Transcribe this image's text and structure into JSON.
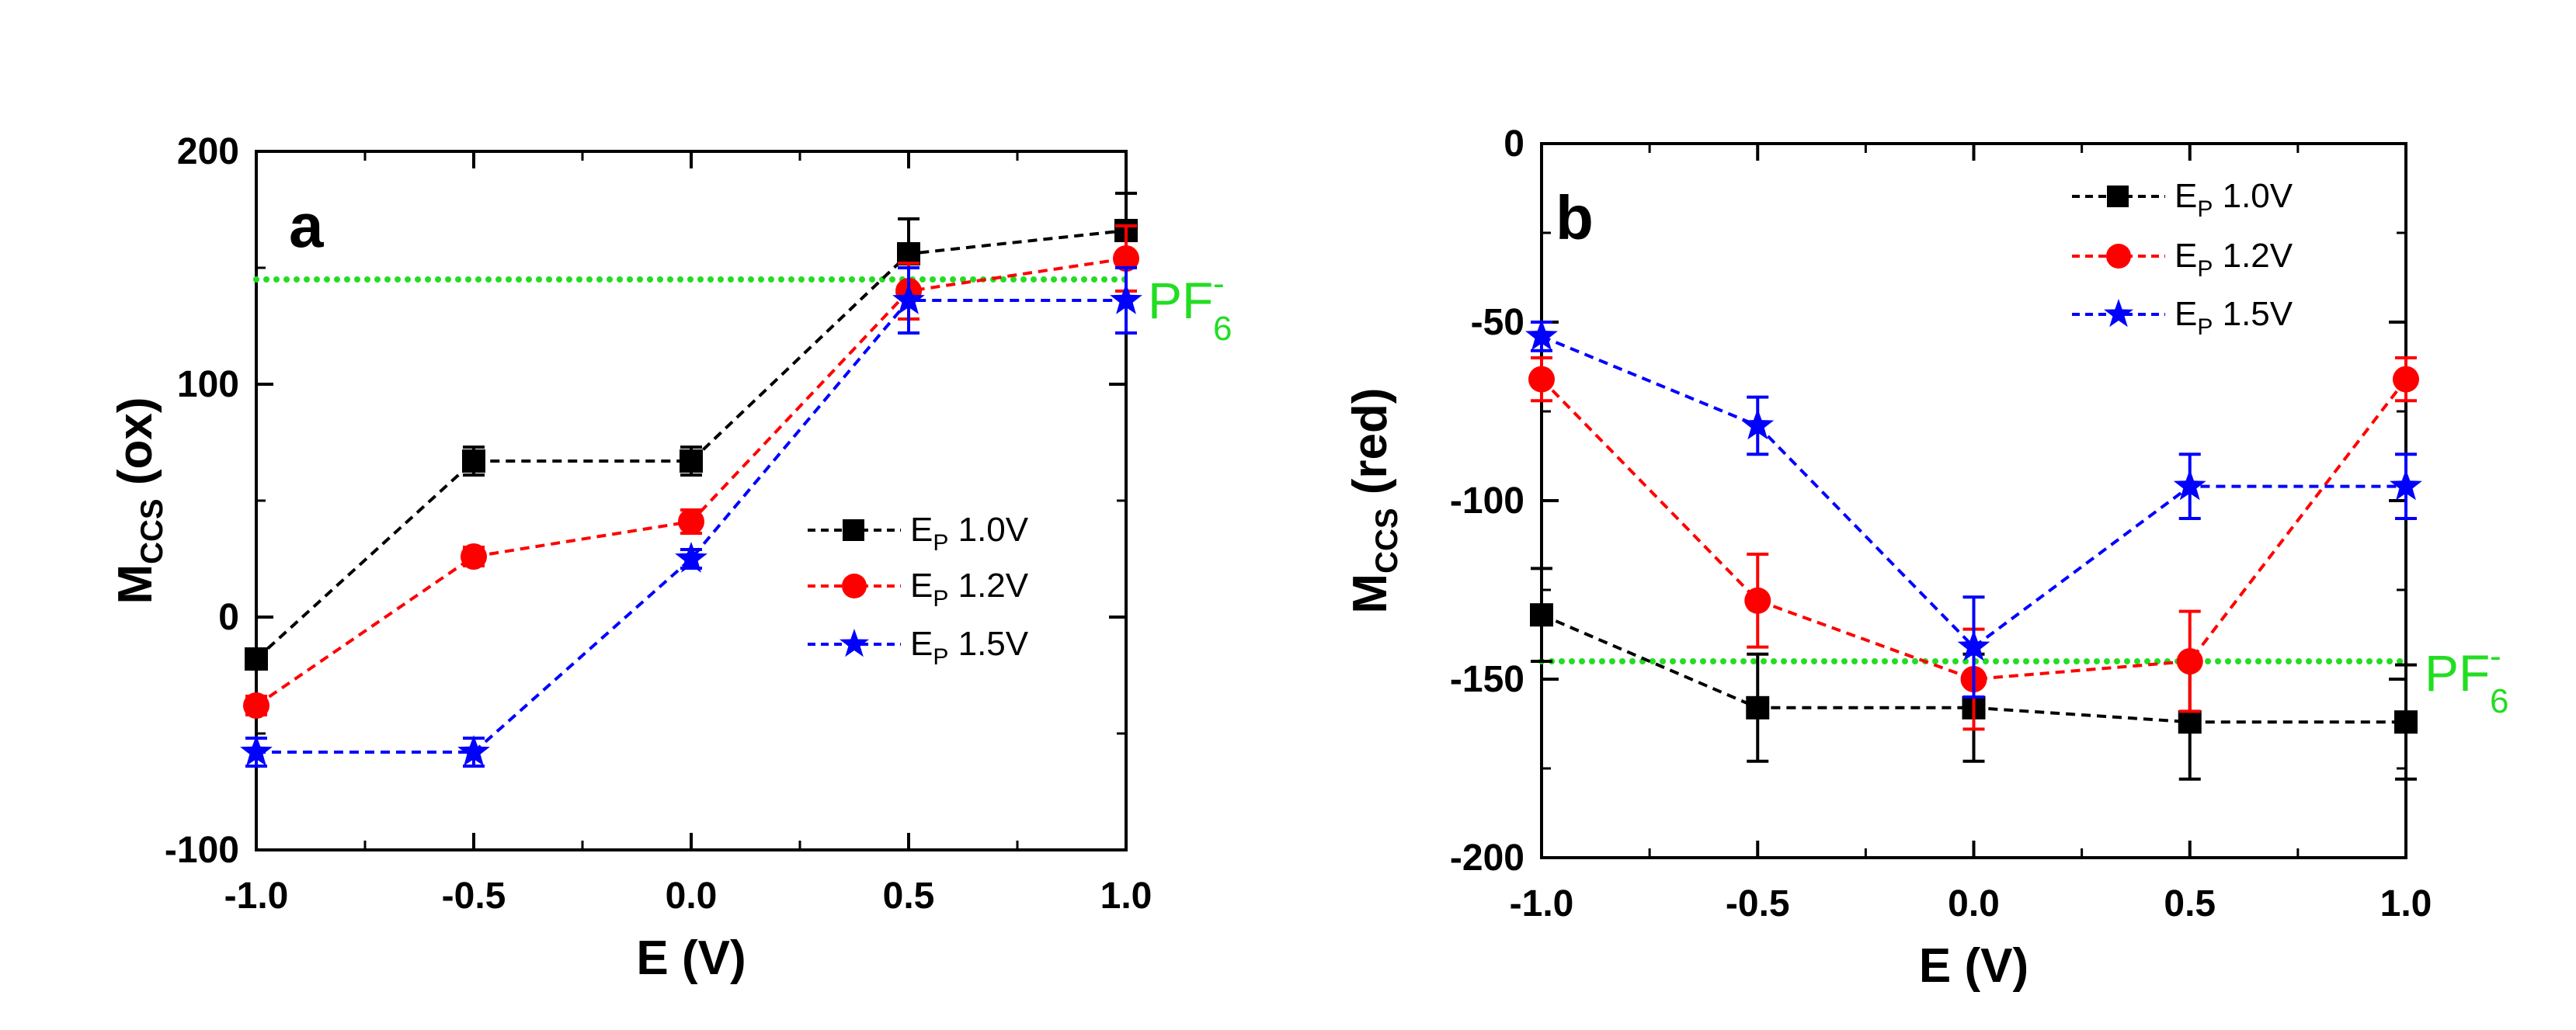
{
  "chart_data": [
    {
      "type": "line",
      "panel_label": "a",
      "xlabel": "E (V)",
      "ylabel_main": "M",
      "ylabel_sub": "CCS",
      "ylabel_rest": " (ox)",
      "x_ticks": [
        "-1.0",
        "-0.5",
        "0.0",
        "0.5",
        "1.0"
      ],
      "y_ticks": [
        "200",
        "100",
        "0",
        "-100"
      ],
      "xlim": [
        -1.0,
        1.0
      ],
      "ylim": [
        -100,
        200
      ],
      "x": [
        -1.0,
        -0.5,
        0.0,
        0.5,
        1.0
      ],
      "legend_position": "center-right",
      "series": [
        {
          "name_main": "E",
          "name_sub": "P",
          "name_rest": " 1.0V",
          "color": "#000000",
          "marker": "square",
          "values": [
            -18,
            67,
            67,
            156,
            166
          ],
          "errors": [
            4,
            6,
            6,
            15,
            16
          ]
        },
        {
          "name_main": "E",
          "name_sub": "P",
          "name_rest": " 1.2V",
          "color": "#ff0000",
          "marker": "circle",
          "values": [
            -38,
            26,
            41,
            140,
            154
          ],
          "errors": [
            4,
            4,
            5,
            12,
            14
          ]
        },
        {
          "name_main": "E",
          "name_sub": "P",
          "name_rest": " 1.5V",
          "color": "#0000ff",
          "marker": "star",
          "values": [
            -58,
            -58,
            25,
            136,
            136
          ],
          "errors": [
            6,
            6,
            4,
            14,
            14
          ]
        }
      ],
      "reference_line": {
        "label_main": "PF",
        "label_sub": "6",
        "label_sup": "-",
        "value": 145,
        "color": "#22dd22"
      }
    },
    {
      "type": "line",
      "panel_label": "b",
      "xlabel": "E (V)",
      "ylabel_main": "M",
      "ylabel_sub": "CCS",
      "ylabel_rest": " (red)",
      "x_ticks": [
        "-1.0",
        "-0.5",
        "0.0",
        "0.5",
        "1.0"
      ],
      "y_ticks": [
        "0",
        "-50",
        "-100",
        "-150",
        "-200"
      ],
      "xlim": [
        -1.0,
        1.0
      ],
      "ylim": [
        -200,
        0
      ],
      "x": [
        -1.0,
        -0.5,
        0.0,
        0.5,
        1.0
      ],
      "legend_position": "top-right",
      "series": [
        {
          "name_main": "E",
          "name_sub": "P",
          "name_rest": " 1.0V",
          "color": "#000000",
          "marker": "square",
          "values": [
            -132,
            -158,
            -158,
            -162,
            -162
          ],
          "errors": [
            13,
            15,
            15,
            16,
            16
          ]
        },
        {
          "name_main": "E",
          "name_sub": "P",
          "name_rest": " 1.2V",
          "color": "#ff0000",
          "marker": "circle",
          "values": [
            -66,
            -128,
            -150,
            -145,
            -66
          ],
          "errors": [
            6,
            13,
            14,
            14,
            6
          ]
        },
        {
          "name_main": "E",
          "name_sub": "P",
          "name_rest": " 1.5V",
          "color": "#0000ff",
          "marker": "star",
          "values": [
            -54,
            -79,
            -141,
            -96,
            -96
          ],
          "errors": [
            4,
            8,
            14,
            9,
            9
          ]
        }
      ],
      "reference_line": {
        "label_main": "PF",
        "label_sub": "6",
        "label_sup": "-",
        "value": -145,
        "color": "#22dd22"
      }
    }
  ]
}
